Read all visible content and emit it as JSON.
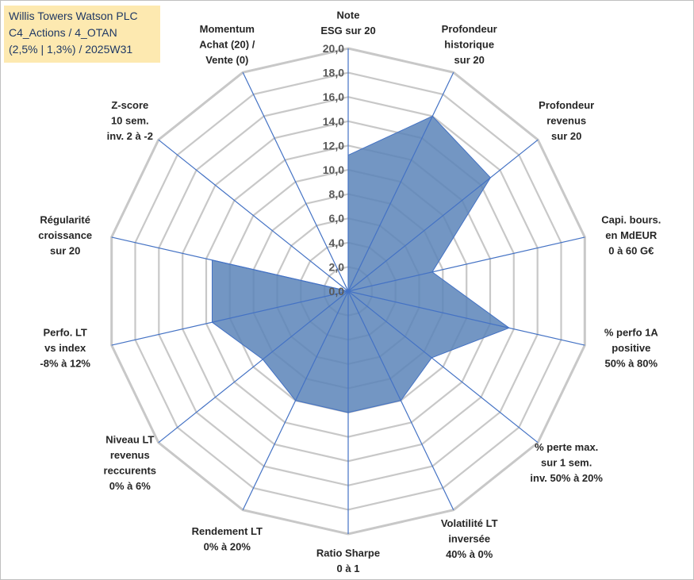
{
  "title": {
    "line1": "Willis Towers Watson PLC",
    "line2": "C4_Actions / 4_OTAN",
    "line3": "(2,5% | 1,3%) / 2025W31"
  },
  "chart_data": {
    "type": "radar",
    "rmin": 0,
    "rmax": 20,
    "tick_step": 2,
    "ticks": [
      "0,0",
      "2,0",
      "4,0",
      "6,0",
      "8,0",
      "10,0",
      "12,0",
      "14,0",
      "16,0",
      "18,0",
      "20,0"
    ],
    "axes": [
      {
        "label": [
          "Note",
          "ESG sur 20"
        ]
      },
      {
        "label": [
          "Profondeur",
          "historique",
          "sur 20"
        ]
      },
      {
        "label": [
          "Profondeur",
          "revenus",
          "sur 20"
        ]
      },
      {
        "label": [
          "Capi. bours.",
          "en MdEUR",
          "0 à 60 G€"
        ]
      },
      {
        "label": [
          "% perfo 1A",
          "positive",
          "50% à 80%"
        ]
      },
      {
        "label": [
          "% perte max.",
          "sur 1 sem.",
          "inv. 50% à 20%"
        ]
      },
      {
        "label": [
          "Volatilité LT",
          "inversée",
          "40% à 0%"
        ]
      },
      {
        "label": [
          "Ratio Sharpe",
          "0 à 1"
        ]
      },
      {
        "label": [
          "Rendement LT",
          "0% à 20%"
        ]
      },
      {
        "label": [
          "Niveau LT",
          "revenus",
          "reccurents",
          "0% à 6%"
        ]
      },
      {
        "label": [
          "Perfo. LT",
          "vs index",
          "-8% à 12%"
        ]
      },
      {
        "label": [
          "Régularité",
          "croissance",
          "sur 20"
        ]
      },
      {
        "label": [
          "Z-score",
          "10 sem.",
          "inv. 2 à -2"
        ]
      },
      {
        "label": [
          "Momentum",
          "Achat (20) /",
          "Vente (0)"
        ]
      }
    ],
    "series": [
      {
        "values": [
          11.2,
          16.0,
          15.0,
          7.1,
          13.6,
          8.8,
          10.0,
          10.0,
          10.0,
          9.0,
          11.5,
          11.5,
          0,
          0
        ]
      }
    ],
    "colors": {
      "fill": "#5b84b8",
      "stroke": "#4472c4",
      "spoke": "#4472c4",
      "grid": "#c8c8c8"
    },
    "grid": true,
    "legend": "none"
  }
}
